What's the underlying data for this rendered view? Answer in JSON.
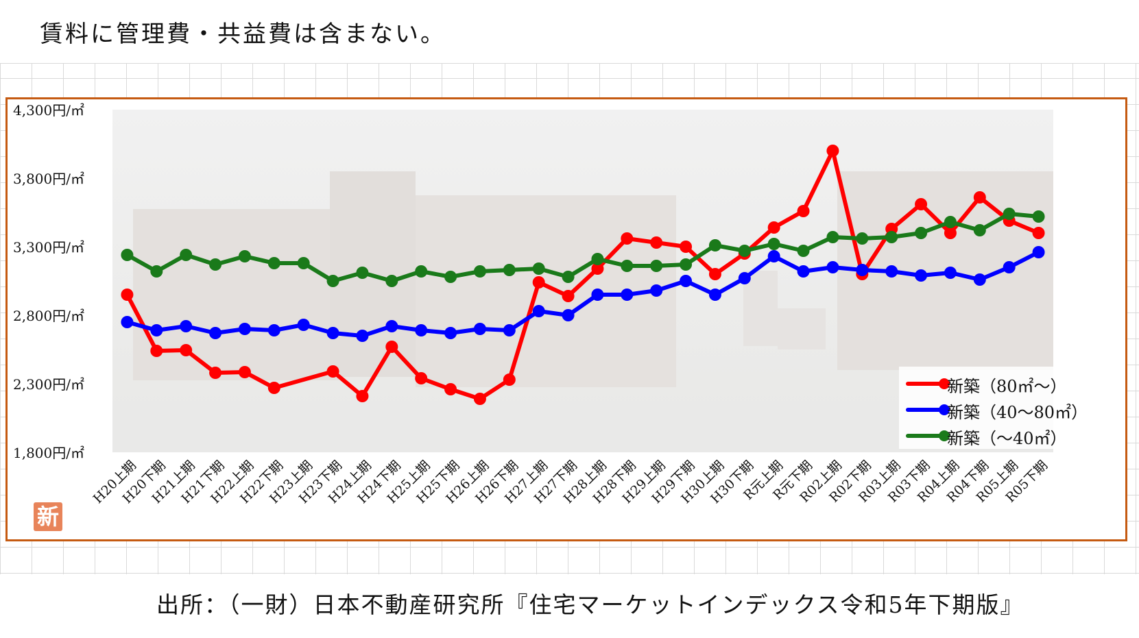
{
  "header_note": "賃料に管理費・共益費は含まない。",
  "source_note": "出所：（一財）日本不動産研究所『住宅マーケットインデックス令和5年下期版』",
  "logo_text": "新",
  "colors": {
    "frame": "#c55a11",
    "red": "#ff0000",
    "blue": "#0000ff",
    "green": "#1a7a1a"
  },
  "chart_data": {
    "type": "line",
    "ylim": [
      1800,
      4300
    ],
    "yticks": [
      1800,
      2300,
      2800,
      3300,
      3800,
      4300
    ],
    "ytick_labels": [
      "1,800円/㎡",
      "2,300円/㎡",
      "2,800円/㎡",
      "3,300円/㎡",
      "3,800円/㎡",
      "4,300円/㎡"
    ],
    "categories": [
      "H20上期",
      "H20下期",
      "H21上期",
      "H21下期",
      "H22上期",
      "H22下期",
      "H23上期",
      "H23下期",
      "H24上期",
      "H24下期",
      "H25上期",
      "H25下期",
      "H26上期",
      "H26下期",
      "H27上期",
      "H27下期",
      "H28上期",
      "H28下期",
      "H29上期",
      "H29下期",
      "H30上期",
      "H30下期",
      "R元上期",
      "R元下期",
      "R02上期",
      "R02下期",
      "R03上期",
      "R03下期",
      "R04上期",
      "R04下期",
      "R05上期",
      "R05下期"
    ],
    "legend_position": "bottom-right",
    "series": [
      {
        "name": "新築（80㎡～）",
        "color": "#ff0000",
        "values": [
          2950,
          2540,
          2545,
          2380,
          2385,
          2270,
          null,
          2390,
          2210,
          2570,
          2340,
          2260,
          2190,
          2330,
          3040,
          2940,
          3140,
          3360,
          3330,
          3300,
          3100,
          3250,
          3440,
          3560,
          4000,
          3100,
          3430,
          3610,
          3400,
          3660,
          3490,
          3400
        ],
        "connect_gaps": true
      },
      {
        "name": "新築（40～80㎡）",
        "color": "#0000ff",
        "values": [
          2750,
          2690,
          2720,
          2670,
          2700,
          2690,
          2730,
          2670,
          2650,
          2720,
          2690,
          2670,
          2700,
          2690,
          2830,
          2800,
          2950,
          2950,
          2980,
          3050,
          2950,
          3070,
          3230,
          3120,
          3150,
          3130,
          3120,
          3090,
          3110,
          3060,
          3150,
          3260
        ]
      },
      {
        "name": "新築（～40㎡）",
        "color": "#1a7a1a",
        "values": [
          3240,
          3120,
          3240,
          3170,
          3230,
          3180,
          3180,
          3050,
          3110,
          3050,
          3120,
          3080,
          3120,
          3130,
          3140,
          3080,
          3210,
          3160,
          3160,
          3170,
          3310,
          3270,
          3320,
          3270,
          3370,
          3360,
          3370,
          3400,
          3480,
          3420,
          3540,
          3520
        ]
      }
    ]
  }
}
